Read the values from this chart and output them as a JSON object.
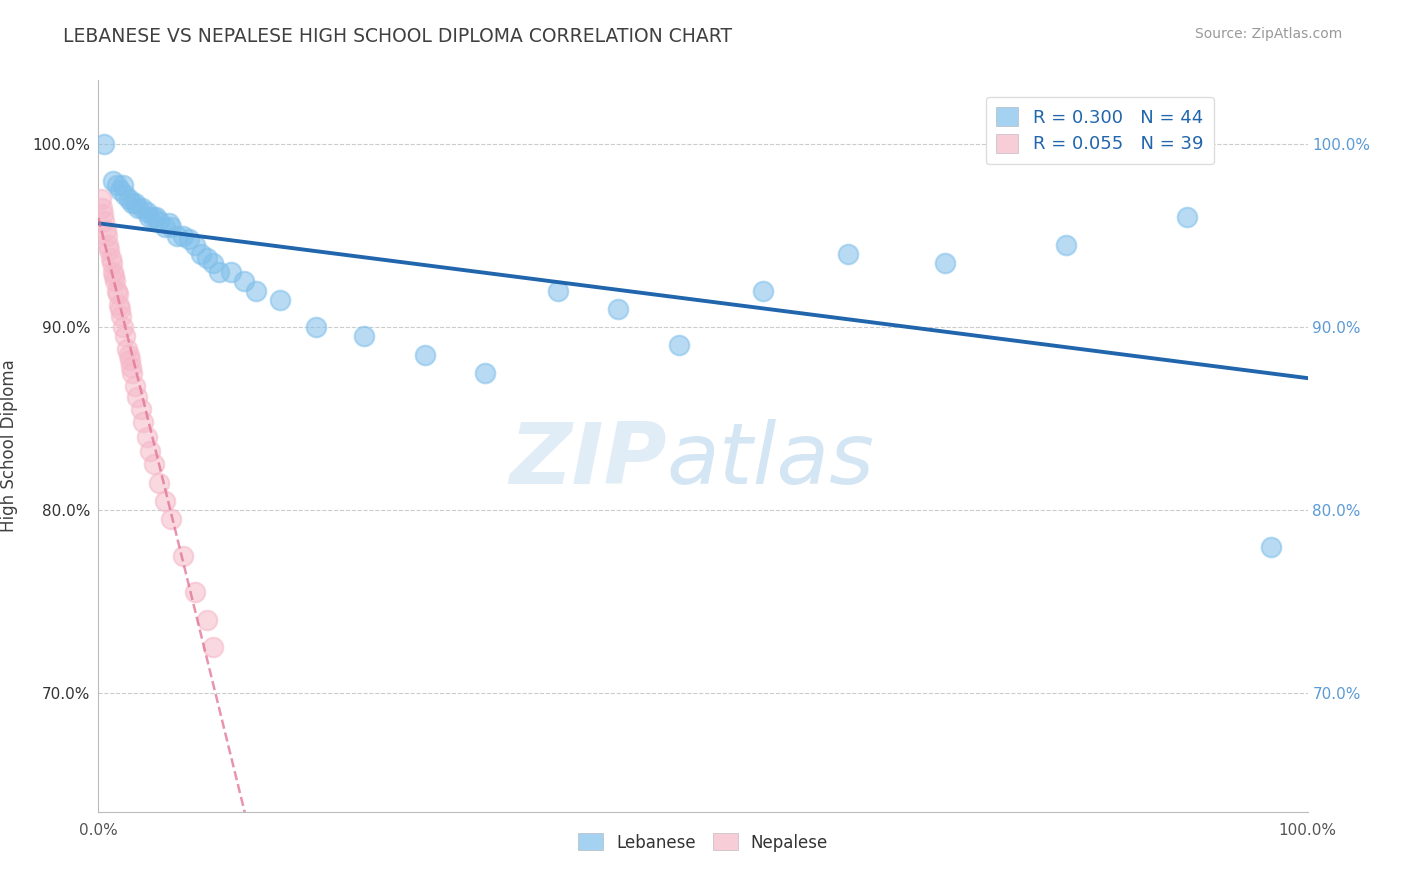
{
  "title": "LEBANESE VS NEPALESE HIGH SCHOOL DIPLOMA CORRELATION CHART",
  "source_text": "Source: ZipAtlas.com",
  "ylabel": "High School Diploma",
  "xlim": [
    0.0,
    1.0
  ],
  "ylim": [
    0.635,
    1.035
  ],
  "ytick_labels": [
    "70.0%",
    "80.0%",
    "90.0%",
    "100.0%"
  ],
  "ytick_positions": [
    0.7,
    0.8,
    0.9,
    1.0
  ],
  "watermark_zip": "ZIP",
  "watermark_atlas": "atlas",
  "legend_r1": "R = 0.300   N = 44",
  "legend_r2": "R = 0.055   N = 39",
  "lebanese_x": [
    0.005,
    0.012,
    0.015,
    0.018,
    0.02,
    0.022,
    0.025,
    0.028,
    0.03,
    0.033,
    0.036,
    0.04,
    0.042,
    0.045,
    0.048,
    0.05,
    0.055,
    0.058,
    0.06,
    0.065,
    0.07,
    0.075,
    0.08,
    0.085,
    0.09,
    0.095,
    0.1,
    0.11,
    0.12,
    0.13,
    0.15,
    0.18,
    0.22,
    0.27,
    0.32,
    0.38,
    0.43,
    0.48,
    0.55,
    0.62,
    0.7,
    0.8,
    0.9,
    0.97
  ],
  "lebanese_y": [
    1.0,
    0.98,
    0.978,
    0.975,
    0.978,
    0.972,
    0.97,
    0.968,
    0.968,
    0.965,
    0.965,
    0.963,
    0.96,
    0.96,
    0.96,
    0.958,
    0.955,
    0.957,
    0.955,
    0.95,
    0.95,
    0.948,
    0.945,
    0.94,
    0.938,
    0.935,
    0.93,
    0.93,
    0.925,
    0.92,
    0.915,
    0.9,
    0.895,
    0.885,
    0.875,
    0.92,
    0.91,
    0.89,
    0.92,
    0.94,
    0.935,
    0.945,
    0.96,
    0.78
  ],
  "nepalese_x": [
    0.002,
    0.003,
    0.004,
    0.005,
    0.006,
    0.007,
    0.008,
    0.009,
    0.01,
    0.011,
    0.012,
    0.013,
    0.014,
    0.015,
    0.016,
    0.017,
    0.018,
    0.019,
    0.02,
    0.022,
    0.024,
    0.025,
    0.026,
    0.027,
    0.028,
    0.03,
    0.032,
    0.035,
    0.037,
    0.04,
    0.043,
    0.046,
    0.05,
    0.055,
    0.06,
    0.07,
    0.08,
    0.09,
    0.095
  ],
  "nepalese_y": [
    0.97,
    0.965,
    0.962,
    0.958,
    0.953,
    0.95,
    0.945,
    0.942,
    0.938,
    0.935,
    0.93,
    0.928,
    0.925,
    0.92,
    0.918,
    0.912,
    0.91,
    0.906,
    0.9,
    0.895,
    0.888,
    0.885,
    0.882,
    0.878,
    0.875,
    0.868,
    0.862,
    0.855,
    0.848,
    0.84,
    0.832,
    0.825,
    0.815,
    0.805,
    0.795,
    0.775,
    0.755,
    0.74,
    0.725
  ],
  "lebanese_color": "#7fbfea",
  "nepalese_color": "#f5b8c8",
  "lebanese_line_color": "#2166ac",
  "nepalese_line_color": "#e07090",
  "bg_color": "#ffffff",
  "grid_color": "#cccccc",
  "title_color": "#404040",
  "tick_color_left": "#333333",
  "tick_color_right": "#5b9bd5"
}
